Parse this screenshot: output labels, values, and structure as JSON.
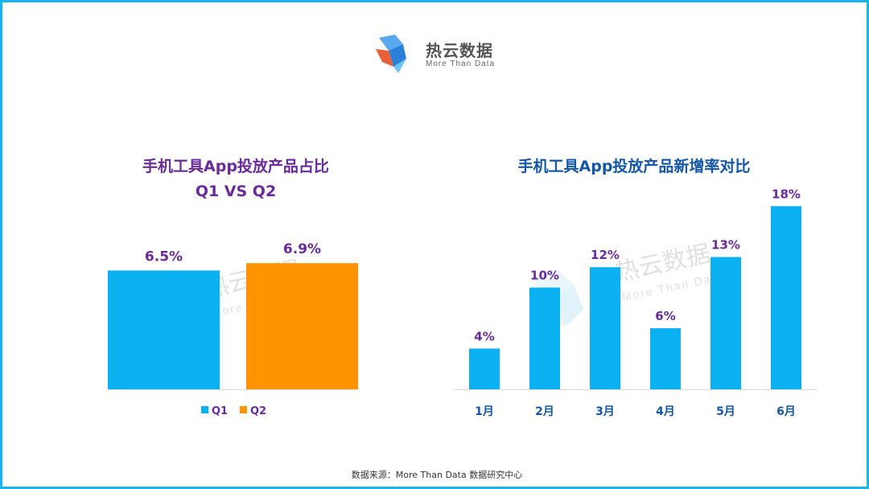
{
  "logo": {
    "name": "热云数据",
    "tagline": "More Than Data"
  },
  "watermark": {
    "name": "热云数据",
    "tagline": "More Than Data"
  },
  "colors": {
    "q1": "#0cb1f2",
    "q2": "#ff9300",
    "monthly": "#0cb1f2",
    "purple": "#6a2a9b",
    "blue": "#1457a8",
    "frame": "#18b4ee"
  },
  "chart_data": [
    {
      "type": "bar",
      "title": "手机工具App投放产品占比",
      "subtitle": "Q1 VS Q2",
      "categories": [
        "Q1",
        "Q2"
      ],
      "values": [
        6.5,
        6.9
      ],
      "labels": [
        "6.5%",
        "6.9%"
      ],
      "legend": [
        "Q1",
        "Q2"
      ],
      "legend_position": "bottom",
      "ylim": [
        0,
        8.8
      ]
    },
    {
      "type": "bar",
      "title": "手机工具App投放产品新增率对比",
      "categories": [
        "1月",
        "2月",
        "3月",
        "4月",
        "5月",
        "6月"
      ],
      "values": [
        4,
        10,
        12,
        6,
        13,
        18
      ],
      "labels": [
        "4%",
        "10%",
        "12%",
        "6%",
        "13%",
        "18%"
      ],
      "ylim": [
        0,
        20
      ]
    }
  ],
  "source": "数据来源：More Than Data 数据研究中心"
}
